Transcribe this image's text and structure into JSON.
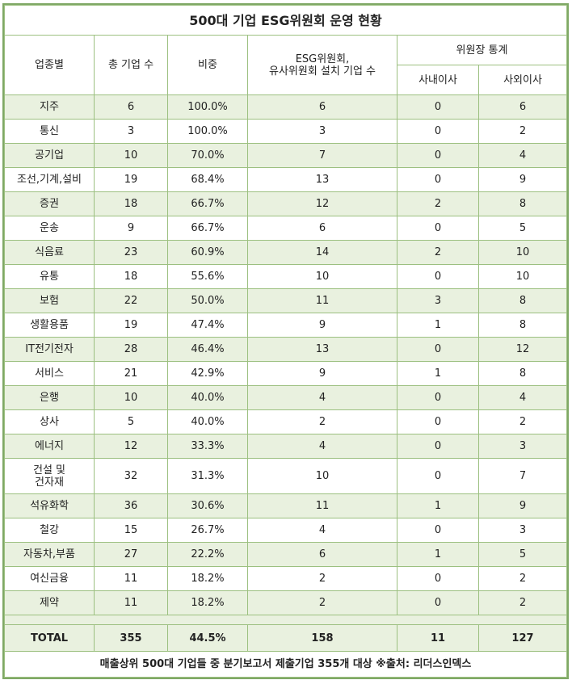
{
  "title": "500대 기업 ESG위원회 운영 현황",
  "header": {
    "industry": "업종별",
    "total": "총 기업 수",
    "ratio": "비중",
    "committee": [
      "ESG위원회,",
      "유사위원회 설치 기업 수"
    ],
    "chair": "위원장 통계",
    "inside": "사내이사",
    "outside": "사외이사"
  },
  "rows": [
    [
      "지주",
      "6",
      "100.0%",
      "6",
      "0",
      "6"
    ],
    [
      "통신",
      "3",
      "100.0%",
      "3",
      "0",
      "2"
    ],
    [
      "공기업",
      "10",
      "70.0%",
      "7",
      "0",
      "4"
    ],
    [
      "조선,기계,설비",
      "19",
      "68.4%",
      "13",
      "0",
      "9"
    ],
    [
      "증권",
      "18",
      "66.7%",
      "12",
      "2",
      "8"
    ],
    [
      "운송",
      "9",
      "66.7%",
      "6",
      "0",
      "5"
    ],
    [
      "식음료",
      "23",
      "60.9%",
      "14",
      "2",
      "10"
    ],
    [
      "유통",
      "18",
      "55.6%",
      "10",
      "0",
      "10"
    ],
    [
      "보험",
      "22",
      "50.0%",
      "11",
      "3",
      "8"
    ],
    [
      "생활용품",
      "19",
      "47.4%",
      "9",
      "1",
      "8"
    ],
    [
      "IT전기전자",
      "28",
      "46.4%",
      "13",
      "0",
      "12"
    ],
    [
      "서비스",
      "21",
      "42.9%",
      "9",
      "1",
      "8"
    ],
    [
      "은행",
      "10",
      "40.0%",
      "4",
      "0",
      "4"
    ],
    [
      "상사",
      "5",
      "40.0%",
      "2",
      "0",
      "2"
    ],
    [
      "에너지",
      "12",
      "33.3%",
      "4",
      "0",
      "3"
    ],
    [
      [
        "건설 및",
        "건자재"
      ],
      "32",
      "31.3%",
      "10",
      "0",
      "7"
    ],
    [
      "석유화학",
      "36",
      "30.6%",
      "11",
      "1",
      "9"
    ],
    [
      "철강",
      "15",
      "26.7%",
      "4",
      "0",
      "3"
    ],
    [
      "자동차,부품",
      "27",
      "22.2%",
      "6",
      "1",
      "5"
    ],
    [
      "여신금융",
      "11",
      "18.2%",
      "2",
      "0",
      "2"
    ],
    [
      "제약",
      "11",
      "18.2%",
      "2",
      "0",
      "2"
    ]
  ],
  "total": [
    "TOTAL",
    "355",
    "44.5%",
    "158",
    "11",
    "127"
  ],
  "footer": "매출상위 500대 기업들 중 분기보고서 제출기업 355개 대상 ※출처: 리더스인덱스"
}
